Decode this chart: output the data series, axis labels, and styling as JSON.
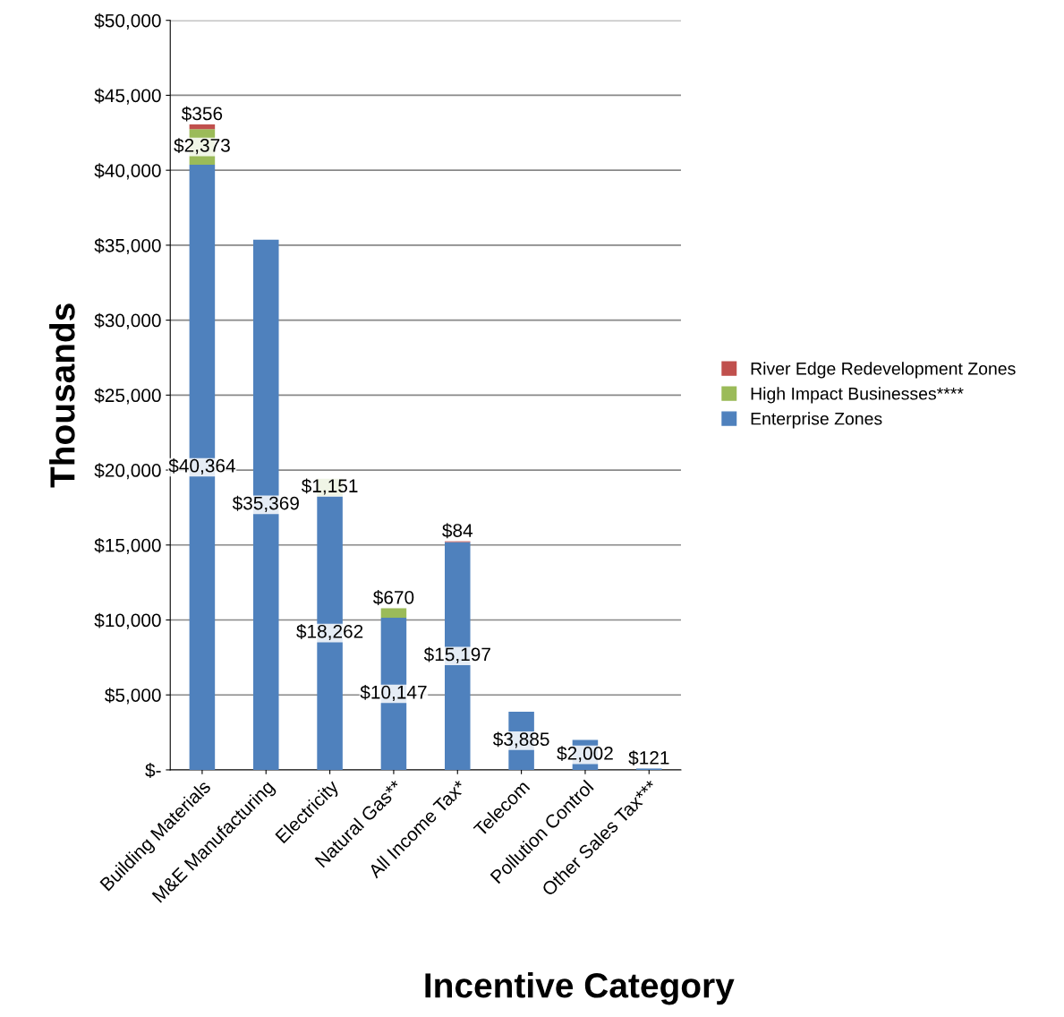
{
  "chart_data": {
    "type": "bar",
    "stacked": true,
    "xlabel": "Incentive Category",
    "ylabel": "Thousands",
    "categories": [
      "Building Materials",
      "M&E Manufacturing",
      "Electricity",
      "Natural Gas**",
      "All Income Tax*",
      "Telecom",
      "Pollution Control",
      "Other Sales Tax***"
    ],
    "series": [
      {
        "name": "Enterprise Zones",
        "color": "#4f81bd",
        "values": [
          40364,
          35369,
          18262,
          10147,
          15197,
          3885,
          2002,
          121
        ],
        "value_labels": [
          "$40,364",
          "$35,369",
          "$18,262",
          "$10,147",
          "$15,197",
          "$3,885",
          "$2,002",
          "$121"
        ]
      },
      {
        "name": "High Impact Businesses****",
        "color": "#9bbb59",
        "values": [
          2373,
          null,
          1151,
          670,
          null,
          null,
          null,
          null
        ],
        "value_labels": [
          "$2,373",
          null,
          "$1,151",
          "$670",
          null,
          null,
          null,
          null
        ]
      },
      {
        "name": "River Edge Redevelopment Zones",
        "color": "#c0504d",
        "values": [
          356,
          null,
          null,
          null,
          84,
          null,
          null,
          null
        ],
        "value_labels": [
          "$356",
          null,
          null,
          null,
          "$84",
          null,
          null,
          null
        ]
      }
    ],
    "ylim": [
      0,
      50000
    ],
    "yticks": [
      {
        "value": 0,
        "label": "$-"
      },
      {
        "value": 5000,
        "label": "$5,000"
      },
      {
        "value": 10000,
        "label": "$10,000"
      },
      {
        "value": 15000,
        "label": "$15,000"
      },
      {
        "value": 20000,
        "label": "$20,000"
      },
      {
        "value": 25000,
        "label": "$25,000"
      },
      {
        "value": 30000,
        "label": "$30,000"
      },
      {
        "value": 35000,
        "label": "$35,000"
      },
      {
        "value": 40000,
        "label": "$40,000"
      },
      {
        "value": 45000,
        "label": "$45,000"
      },
      {
        "value": 50000,
        "label": "$50,000"
      }
    ],
    "grid": "y",
    "legend": "right"
  }
}
